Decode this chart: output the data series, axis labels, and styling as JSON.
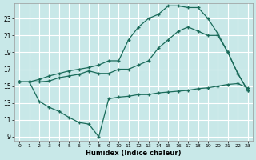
{
  "xlabel": "Humidex (Indice chaleur)",
  "bg_color": "#c8e8e8",
  "line_color": "#1a6b5a",
  "grid_color": "#ffffff",
  "xlim": [
    -0.5,
    23.5
  ],
  "ylim": [
    8.5,
    24.8
  ],
  "yticks": [
    9,
    11,
    13,
    15,
    17,
    19,
    21,
    23
  ],
  "xticks": [
    0,
    1,
    2,
    3,
    4,
    5,
    6,
    7,
    8,
    9,
    10,
    11,
    12,
    13,
    14,
    15,
    16,
    17,
    18,
    19,
    20,
    21,
    22,
    23
  ],
  "line1_x": [
    0,
    1,
    2,
    3,
    4,
    5,
    6,
    7,
    8,
    9,
    10,
    11,
    12,
    13,
    14,
    15,
    16,
    17,
    18,
    19,
    20,
    21,
    22,
    23
  ],
  "line1_y": [
    15.5,
    15.5,
    13.2,
    12.5,
    12.0,
    11.3,
    10.7,
    10.5,
    9.0,
    13.5,
    13.7,
    13.8,
    14.0,
    14.0,
    14.2,
    14.3,
    14.4,
    14.5,
    14.7,
    14.8,
    15.0,
    15.2,
    15.3,
    14.8
  ],
  "line2_x": [
    0,
    1,
    2,
    3,
    4,
    5,
    6,
    7,
    8,
    9,
    10,
    11,
    12,
    13,
    14,
    15,
    16,
    17,
    18,
    19,
    20,
    21,
    22,
    23
  ],
  "line2_y": [
    15.5,
    15.5,
    15.5,
    15.6,
    16.0,
    16.2,
    16.4,
    16.8,
    16.5,
    16.5,
    17.0,
    17.0,
    17.5,
    18.0,
    19.5,
    20.5,
    21.5,
    22.0,
    21.5,
    21.0,
    21.0,
    19.0,
    16.5,
    14.5
  ],
  "line3_x": [
    0,
    1,
    2,
    3,
    4,
    5,
    6,
    7,
    8,
    9,
    10,
    11,
    12,
    13,
    14,
    15,
    16,
    17,
    18,
    19,
    20,
    21,
    22,
    23
  ],
  "line3_y": [
    15.5,
    15.5,
    15.8,
    16.2,
    16.5,
    16.8,
    17.0,
    17.2,
    17.5,
    18.0,
    18.0,
    20.5,
    22.0,
    23.0,
    23.5,
    24.5,
    24.5,
    24.3,
    24.3,
    23.0,
    21.2,
    19.0,
    16.5,
    14.5
  ]
}
